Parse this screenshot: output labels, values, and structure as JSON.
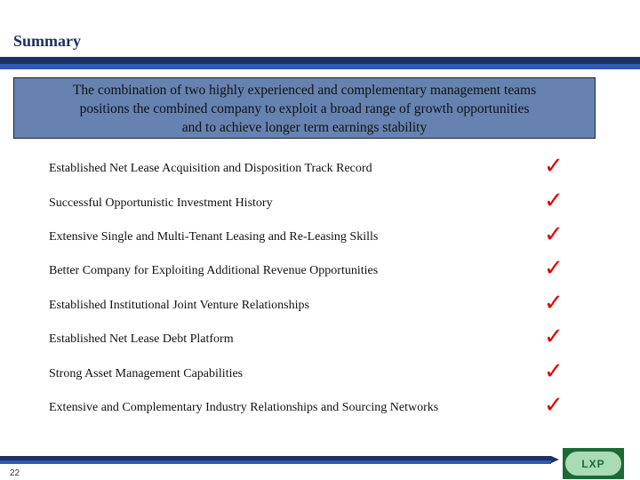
{
  "title": "Summary",
  "summary_box": {
    "lines": [
      "The combination of two highly experienced and complementary management teams",
      "positions the combined company to exploit a broad range of growth opportunities",
      "and to achieve longer term earnings stability"
    ]
  },
  "items": [
    {
      "label": "Established Net Lease Acquisition and Disposition Track Record",
      "checked": true
    },
    {
      "label": "Successful Opportunistic Investment History",
      "checked": true
    },
    {
      "label": "Extensive Single and Multi-Tenant Leasing and Re-Leasing Skills",
      "checked": true
    },
    {
      "label": "Better Company for Exploiting Additional Revenue Opportunities",
      "checked": true
    },
    {
      "label": "Established Institutional Joint Venture Relationships",
      "checked": true
    },
    {
      "label": "Established Net Lease Debt Platform",
      "checked": true
    },
    {
      "label": "Strong Asset Management Capabilities",
      "checked": true
    },
    {
      "label": "Extensive and Complementary Industry Relationships and Sourcing Networks",
      "checked": true
    }
  ],
  "check_glyph": "✓",
  "check_color": "#e00000",
  "page_number": "22",
  "logo_text": "LXP"
}
